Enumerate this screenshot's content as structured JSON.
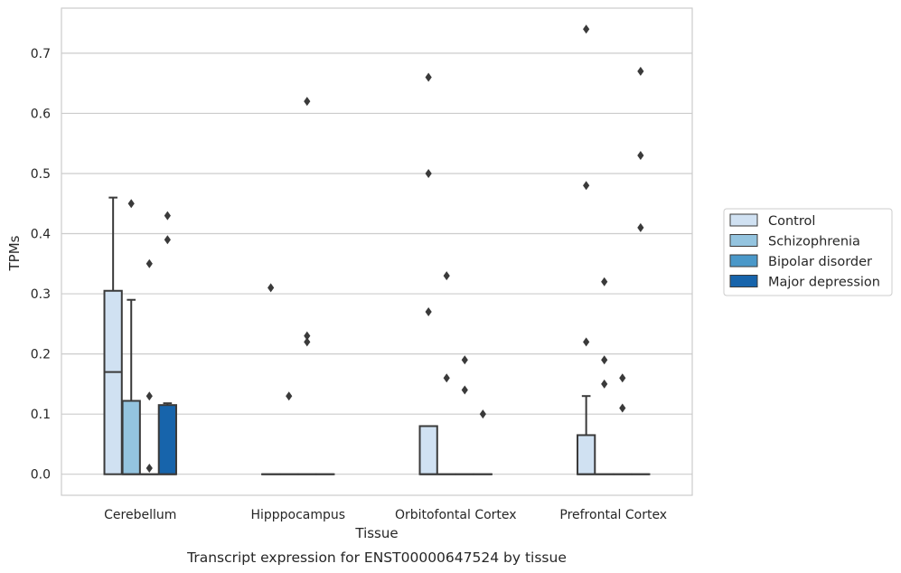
{
  "chart_data": {
    "type": "box",
    "caption": "Transcript expression for ENST00000647524 by tissue",
    "xlabel": "Tissue",
    "ylabel": "TPMs",
    "ylim": [
      -0.035,
      0.775
    ],
    "yticks": [
      0.0,
      0.1,
      0.2,
      0.3,
      0.4,
      0.5,
      0.6,
      0.7
    ],
    "ytick_labels": [
      "0.0",
      "0.1",
      "0.2",
      "0.3",
      "0.4",
      "0.5",
      "0.6",
      "0.7"
    ],
    "grid": "horizontal",
    "legend_position": "right",
    "categories": [
      "Cerebellum",
      "Hipppocampus",
      "Orbitofontal Cortex",
      "Prefrontal Cortex"
    ],
    "series": [
      {
        "name": "Control",
        "color": "#d0e1f2",
        "boxes": [
          {
            "q1": 0.0,
            "median": 0.17,
            "q3": 0.305,
            "whisker_low": 0.0,
            "whisker_high": 0.46,
            "outliers": []
          },
          {
            "q1": 0.0,
            "median": 0.0,
            "q3": 0.0,
            "whisker_low": 0.0,
            "whisker_high": 0.0,
            "outliers": [
              0.31
            ]
          },
          {
            "q1": 0.0,
            "median": 0.0,
            "q3": 0.08,
            "whisker_low": 0.0,
            "whisker_high": 0.08,
            "outliers": [
              0.27,
              0.5,
              0.66
            ]
          },
          {
            "q1": 0.0,
            "median": 0.0,
            "q3": 0.065,
            "whisker_low": 0.0,
            "whisker_high": 0.13,
            "outliers": [
              0.22,
              0.48,
              0.74
            ]
          }
        ]
      },
      {
        "name": "Schizophrenia",
        "color": "#94c4df",
        "boxes": [
          {
            "q1": 0.0,
            "median": 0.0,
            "q3": 0.122,
            "whisker_low": 0.0,
            "whisker_high": 0.29,
            "outliers": [
              0.45
            ]
          },
          {
            "q1": 0.0,
            "median": 0.0,
            "q3": 0.0,
            "whisker_low": 0.0,
            "whisker_high": 0.0,
            "outliers": [
              0.13
            ]
          },
          {
            "q1": 0.0,
            "median": 0.0,
            "q3": 0.0,
            "whisker_low": 0.0,
            "whisker_high": 0.0,
            "outliers": [
              0.16,
              0.33
            ]
          },
          {
            "q1": 0.0,
            "median": 0.0,
            "q3": 0.0,
            "whisker_low": 0.0,
            "whisker_high": 0.0,
            "outliers": [
              0.15,
              0.19,
              0.32
            ]
          }
        ]
      },
      {
        "name": "Bipolar disorder",
        "color": "#4a98c9",
        "boxes": [
          {
            "q1": 0.0,
            "median": 0.0,
            "q3": 0.0,
            "whisker_low": 0.0,
            "whisker_high": 0.0,
            "outliers": [
              0.01,
              0.13,
              0.35
            ]
          },
          {
            "q1": 0.0,
            "median": 0.0,
            "q3": 0.0,
            "whisker_low": 0.0,
            "whisker_high": 0.0,
            "outliers": [
              0.22,
              0.23,
              0.62
            ]
          },
          {
            "q1": 0.0,
            "median": 0.0,
            "q3": 0.0,
            "whisker_low": 0.0,
            "whisker_high": 0.0,
            "outliers": [
              0.14,
              0.19
            ]
          },
          {
            "q1": 0.0,
            "median": 0.0,
            "q3": 0.0,
            "whisker_low": 0.0,
            "whisker_high": 0.0,
            "outliers": [
              0.11,
              0.16
            ]
          }
        ]
      },
      {
        "name": "Major depression",
        "color": "#1764ab",
        "boxes": [
          {
            "q1": 0.0,
            "median": 0.0,
            "q3": 0.115,
            "whisker_low": 0.0,
            "whisker_high": 0.118,
            "outliers": [
              0.39,
              0.43
            ]
          },
          {
            "q1": 0.0,
            "median": 0.0,
            "q3": 0.0,
            "whisker_low": 0.0,
            "whisker_high": 0.0,
            "outliers": []
          },
          {
            "q1": 0.0,
            "median": 0.0,
            "q3": 0.0,
            "whisker_low": 0.0,
            "whisker_high": 0.0,
            "outliers": [
              0.1
            ]
          },
          {
            "q1": 0.0,
            "median": 0.0,
            "q3": 0.0,
            "whisker_low": 0.0,
            "whisker_high": 0.0,
            "outliers": [
              0.41,
              0.53,
              0.67
            ]
          }
        ]
      }
    ]
  }
}
